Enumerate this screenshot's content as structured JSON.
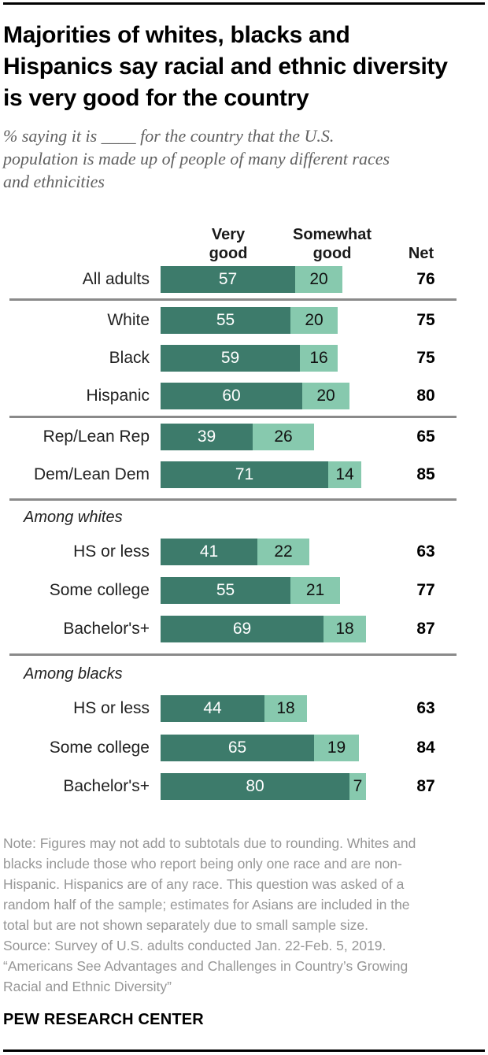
{
  "title": "Majorities of whites, blacks and\nHispanics say racial and ethnic diversity\nis very good for the country",
  "subtitle": "% saying it is ____ for the country that the U.S.\npopulation is made up of people of many different races\nand ethnicities",
  "chart_data": {
    "type": "bar",
    "orientation": "horizontal",
    "stacked": true,
    "series_names": [
      "Very good",
      "Somewhat good"
    ],
    "colors": {
      "very_good": "#3d7b6b",
      "somewhat_good": "#87c9ae",
      "net_text": "#000000",
      "divider": "#8a8a8a"
    },
    "xlim": [
      0,
      100
    ],
    "columns": {
      "col1": "Very\ngood",
      "col2": "Somewhat\ngood",
      "net": "Net"
    },
    "section_labels": {
      "among_whites": "Among whites",
      "among_blacks": "Among blacks"
    },
    "rows": [
      {
        "group": "total",
        "label": "All adults",
        "very_good": 57,
        "somewhat_good": 20,
        "net": 76
      },
      {
        "group": "race",
        "label": "White",
        "very_good": 55,
        "somewhat_good": 20,
        "net": 75
      },
      {
        "group": "race",
        "label": "Black",
        "very_good": 59,
        "somewhat_good": 16,
        "net": 75
      },
      {
        "group": "race",
        "label": "Hispanic",
        "very_good": 60,
        "somewhat_good": 20,
        "net": 80
      },
      {
        "group": "party",
        "label": "Rep/Lean Rep",
        "very_good": 39,
        "somewhat_good": 26,
        "net": 65
      },
      {
        "group": "party",
        "label": "Dem/Lean Dem",
        "very_good": 71,
        "somewhat_good": 14,
        "net": 85
      },
      {
        "group": "among_whites",
        "label": "HS or less",
        "very_good": 41,
        "somewhat_good": 22,
        "net": 63
      },
      {
        "group": "among_whites",
        "label": "Some college",
        "very_good": 55,
        "somewhat_good": 21,
        "net": 77
      },
      {
        "group": "among_whites",
        "label": "Bachelor's+",
        "very_good": 69,
        "somewhat_good": 18,
        "net": 87
      },
      {
        "group": "among_blacks",
        "label": "HS or less",
        "very_good": 44,
        "somewhat_good": 18,
        "net": 63
      },
      {
        "group": "among_blacks",
        "label": "Some college",
        "very_good": 65,
        "somewhat_good": 19,
        "net": 84
      },
      {
        "group": "among_blacks",
        "label": "Bachelor's+",
        "very_good": 80,
        "somewhat_good": 7,
        "net": 87
      }
    ]
  },
  "footer": {
    "notes": "Note: Figures may not add to subtotals due to rounding. Whites and\nblacks include those who report being only one race and are non-\nHispanic. Hispanics are of any race. This question was asked of a\nrandom half of the sample; estimates for Asians are included in the\ntotal but are not shown separately due to small sample size.\nSource: Survey of U.S. adults conducted Jan. 22-Feb. 5, 2019.\n“Americans See Advantages and Challenges in Country’s Growing\nRacial and Ethnic Diversity”",
    "brand": "PEW RESEARCH CENTER"
  }
}
